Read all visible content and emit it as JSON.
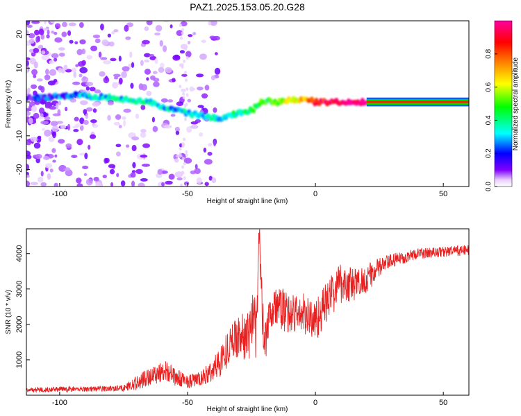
{
  "title": "PAZ1.2025.153.05.20.G28",
  "chart_data": [
    {
      "type": "heatmap",
      "xlabel": "Height of straight line (km)",
      "ylabel": "Frequency (Hz)",
      "xlim": [
        -113,
        60
      ],
      "ylim": [
        -25,
        24
      ],
      "xticks": [
        -100,
        -50,
        0,
        50
      ],
      "yticks": [
        20,
        10,
        0,
        -10,
        -20
      ],
      "grid": false,
      "colorbar": {
        "label": "Normalized spectral amplitude",
        "range": [
          0,
          1
        ],
        "ticks": [
          0.0,
          0.2,
          0.4,
          0.6,
          0.8
        ],
        "colormap": [
          "#ffffff",
          "#c8a0ff",
          "#8000ff",
          "#0000ff",
          "#00ffff",
          "#00ff00",
          "#ffff00",
          "#ff8000",
          "#ff0000",
          "#ff00a0"
        ]
      },
      "ridge": {
        "x": [
          -113,
          -95,
          -85,
          -75,
          -65,
          -58,
          -52,
          -45,
          -38,
          -34,
          -28,
          -24,
          -21,
          -15,
          -10,
          -5,
          0,
          10,
          20,
          60
        ],
        "frequency": [
          1,
          2,
          1.5,
          1,
          0,
          -2,
          -3,
          -4,
          -5,
          -4,
          -3,
          -2,
          0.5,
          0,
          0.5,
          1,
          0,
          0,
          0,
          0
        ],
        "amplitude": [
          0.15,
          0.25,
          0.3,
          0.35,
          0.35,
          0.3,
          0.3,
          0.3,
          0.3,
          0.35,
          0.4,
          0.45,
          0.45,
          0.55,
          0.6,
          0.7,
          0.85,
          0.95,
          1.0,
          1.0
        ]
      }
    },
    {
      "type": "line",
      "xlabel": "Height of straight line (km)",
      "ylabel": "SNR (10 * v/v)",
      "xlim": [
        -113,
        60
      ],
      "ylim": [
        0,
        4700
      ],
      "xticks": [
        -100,
        -50,
        0,
        50
      ],
      "yticks": [
        1000,
        2000,
        3000,
        4000
      ],
      "grid": false,
      "color": "#e82020",
      "series": [
        {
          "x": [
            -113,
            -100,
            -85,
            -75,
            -68,
            -63,
            -58,
            -55,
            -50,
            -45,
            -40,
            -36,
            -33,
            -30,
            -27,
            -25,
            -23,
            -22,
            -21,
            -20,
            -18,
            -15,
            -10,
            -5,
            0,
            5,
            10,
            15,
            20,
            25,
            30,
            40,
            50,
            60
          ],
          "y": [
            150,
            170,
            180,
            200,
            400,
            600,
            700,
            500,
            400,
            450,
            700,
            1100,
            1500,
            1700,
            1600,
            2000,
            1800,
            4700,
            2700,
            1500,
            2400,
            2500,
            2300,
            2300,
            2100,
            2700,
            3200,
            3100,
            3300,
            3600,
            3800,
            4000,
            4050,
            4100
          ],
          "spread": [
            70,
            70,
            80,
            90,
            250,
            300,
            300,
            250,
            200,
            200,
            350,
            500,
            500,
            600,
            700,
            900,
            900,
            300,
            900,
            800,
            600,
            600,
            600,
            600,
            600,
            600,
            600,
            500,
            400,
            300,
            200,
            150,
            150,
            150
          ]
        }
      ]
    }
  ]
}
